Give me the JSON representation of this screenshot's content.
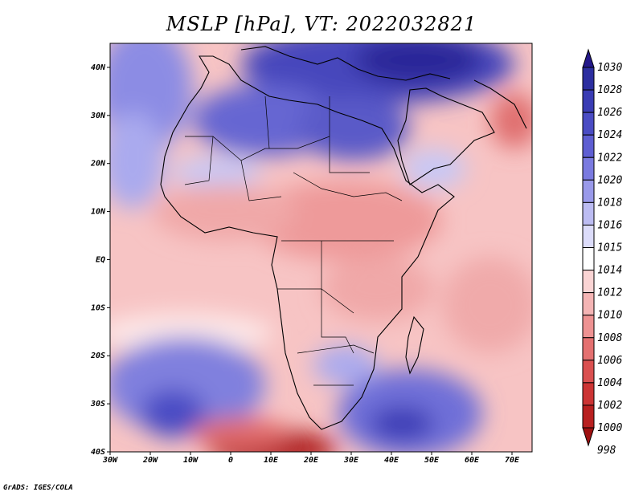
{
  "title": "MSLP [hPa], VT: 2022032821",
  "footer": "GrADS: IGES/COLA",
  "map": {
    "lon_labels": [
      "30W",
      "20W",
      "10W",
      "0",
      "10E",
      "20E",
      "30E",
      "40E",
      "50E",
      "60E",
      "70E"
    ],
    "lat_labels": [
      "40N",
      "30N",
      "20N",
      "10N",
      "EQ",
      "10S",
      "20S",
      "30S",
      "40S"
    ],
    "lon_range": [
      -30,
      75
    ],
    "lat_range": [
      -40,
      45
    ]
  },
  "colorbar": {
    "levels": [
      "1030",
      "1028",
      "1026",
      "1024",
      "1022",
      "1020",
      "1018",
      "1016",
      "1015",
      "1014",
      "1012",
      "1010",
      "1008",
      "1006",
      "1004",
      "1002",
      "1000",
      "998"
    ],
    "colors": [
      "#24188a",
      "#2c2ea0",
      "#3a3cb4",
      "#4a4cc4",
      "#5e5ed2",
      "#7a7ae0",
      "#9a9aea",
      "#bcbcf2",
      "#dcdcfa",
      "#ffffff",
      "#fad4d4",
      "#f4b4b4",
      "#ee9292",
      "#e47070",
      "#da5050",
      "#cc3434",
      "#b82020",
      "#9e1010"
    ]
  },
  "chart_data": {
    "type": "heatmap",
    "variable": "MSLP [hPa]",
    "valid_time": "2022032821",
    "levels_hpa": [
      998,
      1000,
      1002,
      1004,
      1006,
      1008,
      1010,
      1012,
      1014,
      1015,
      1016,
      1018,
      1020,
      1022,
      1024,
      1026,
      1028,
      1030
    ],
    "xlabel": "",
    "ylabel": "",
    "xlim": [
      -30,
      75
    ],
    "ylim": [
      -40,
      45
    ]
  }
}
